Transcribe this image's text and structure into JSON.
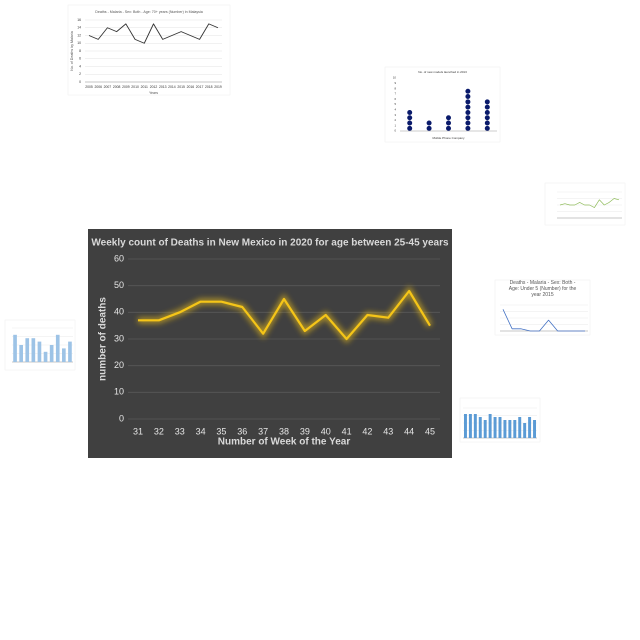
{
  "chart_data": [
    {
      "type": "line",
      "title": "Weekly count of Deaths in New Mexico in 2020 for age between 25-45 years",
      "xlabel": "Number of Week of the Year",
      "ylabel": "number of deaths",
      "categories": [
        "31",
        "32",
        "33",
        "34",
        "35",
        "36",
        "37",
        "38",
        "39",
        "40",
        "41",
        "42",
        "43",
        "44",
        "45"
      ],
      "values": [
        37,
        37,
        40,
        44,
        44,
        42,
        32,
        45,
        33,
        39,
        30,
        39,
        38,
        48,
        35
      ],
      "color": "#f5c518",
      "ylim": [
        0,
        60
      ],
      "yticks": [
        0,
        10,
        20,
        30,
        40,
        50,
        60
      ],
      "grid": true
    },
    {
      "type": "line",
      "title": "Deaths - Malaria - Sex: Both - Age: 70+ years (Number) in Malaysia",
      "xlabel": "Years",
      "ylabel": "No. of Deaths by Malaria",
      "categories": [
        "2005",
        "2006",
        "2007",
        "2008",
        "2009",
        "2010",
        "2011",
        "2012",
        "2013",
        "2014",
        "2015",
        "2016",
        "2017",
        "2018",
        "2019"
      ],
      "values": [
        12,
        11,
        14,
        13,
        15,
        11,
        10,
        15,
        11,
        12,
        13,
        12,
        11,
        15,
        14
      ],
      "color": "#333333",
      "ylim": [
        0,
        16
      ],
      "yticks": [
        0,
        2,
        4,
        6,
        8,
        10,
        12,
        14,
        16
      ],
      "grid": true
    },
    {
      "type": "dot",
      "title": "No. of new models launched in 2013",
      "xlabel": "Mobile Phone Company",
      "categories": [
        null,
        null,
        null,
        null,
        null
      ],
      "values": [
        4,
        2,
        3,
        8,
        6
      ],
      "color": "#0a1a6b",
      "ylim": [
        0,
        10
      ],
      "yticks": [
        0,
        1,
        2,
        3,
        4,
        5,
        6,
        7,
        8,
        9,
        10
      ],
      "grid": false
    },
    {
      "type": "line",
      "categories": [
        null,
        null,
        null,
        null,
        null,
        null,
        null,
        null,
        null,
        null,
        null,
        null,
        null
      ],
      "values": [
        5,
        5.5,
        5,
        5,
        6,
        5,
        5,
        4,
        7,
        5,
        6,
        7.5,
        7
      ],
      "color": "#8fbc5a",
      "ylim": [
        0,
        10
      ],
      "grid": true
    },
    {
      "type": "bar",
      "categories": [
        null,
        null,
        null,
        null,
        null,
        null,
        null,
        null,
        null,
        null
      ],
      "values": [
        8,
        5,
        7,
        7,
        6,
        3,
        5,
        8,
        4,
        6
      ],
      "color": "#9dc3e6",
      "ylim": [
        0,
        10
      ],
      "grid": true
    },
    {
      "type": "line",
      "title": "Deaths - Malaria - Sex: Both - Age: Under 5 (Number) for the year 2015",
      "categories": [
        null,
        null,
        null,
        null,
        null,
        null,
        null,
        null,
        null,
        null
      ],
      "values": [
        10,
        1,
        1,
        0,
        0,
        5,
        0,
        0,
        0,
        0
      ],
      "color": "#4472c4",
      "ylim": [
        0,
        12
      ],
      "grid": true
    },
    {
      "type": "bar",
      "categories": [
        null,
        null,
        null,
        null,
        null,
        null,
        null,
        null,
        null,
        null,
        null,
        null,
        null,
        null,
        null
      ],
      "values": [
        8,
        8,
        8,
        7,
        6,
        8,
        7,
        7,
        6,
        6,
        6,
        7,
        5,
        7,
        6
      ],
      "color": "#5b9bd5",
      "ylim": [
        0,
        10
      ],
      "grid": true
    }
  ]
}
